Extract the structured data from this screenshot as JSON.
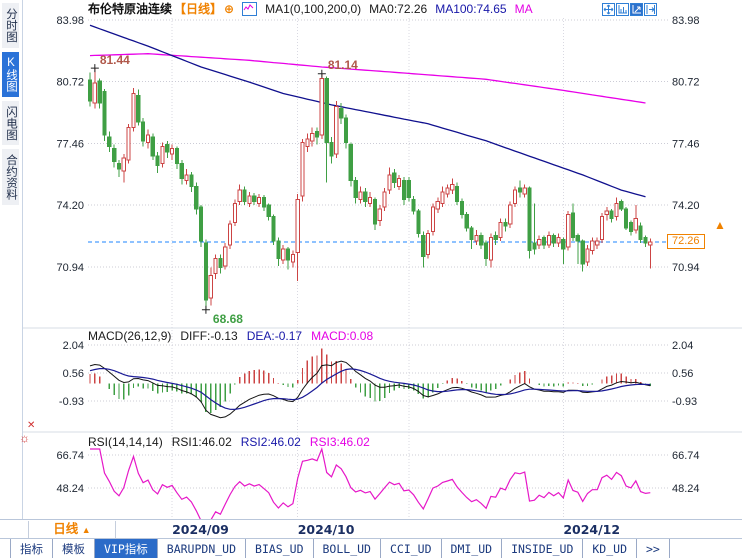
{
  "sidebar": {
    "items": [
      {
        "label": "分时图",
        "active": false
      },
      {
        "label": "K线图",
        "active": true
      },
      {
        "label": "闪电图",
        "active": false
      },
      {
        "label": "合约资料",
        "active": false
      }
    ]
  },
  "header": {
    "symbol": "布伦特原油连续",
    "period_tag": "【日线】",
    "plus_icon": "⊕",
    "ma_params": "MA1(0,100,200,0)",
    "ma0": "MA0:72.26",
    "ma100": "MA100:74.65",
    "ma200": "MA"
  },
  "price_panel": {
    "last_price_badge": "72.26",
    "arrow_icon": "▲"
  },
  "panel_icons": {
    "close": "✕",
    "settings": "☼"
  },
  "indicators": {
    "macd": {
      "title": "MACD(26,12,9)",
      "diff": "DIFF:-0.13",
      "dea": "DEA:-0.17",
      "macd": "MACD:0.08"
    },
    "rsi": {
      "title": "RSI(14,14,14)",
      "rsi1": "RSI1:46.02",
      "rsi2": "RSI2:46.02",
      "rsi3": "RSI3:46.02"
    }
  },
  "timeframe_selector": {
    "label": "日线",
    "arrow": "▲"
  },
  "bottom_tabs": {
    "items": [
      {
        "label": "指标",
        "active": false
      },
      {
        "label": "模板",
        "active": false
      },
      {
        "label": "VIP指标",
        "active": true
      },
      {
        "label": "BARUPDN_UD",
        "active": false
      },
      {
        "label": "BIAS_UD",
        "active": false
      },
      {
        "label": "BOLL_UD",
        "active": false
      },
      {
        "label": "CCI_UD",
        "active": false
      },
      {
        "label": "DMI_UD",
        "active": false
      },
      {
        "label": "INSIDE_UD",
        "active": false
      },
      {
        "label": "KD_UD",
        "active": false
      },
      {
        "label": ">>",
        "active": false
      }
    ]
  },
  "chart_data": {
    "type": "candlestick",
    "title": "布伦特原油连续",
    "period": "日线",
    "price_axis_ticks": [
      83.98,
      80.72,
      77.46,
      74.2,
      70.94
    ],
    "last_price": 72.26,
    "annotations": {
      "first_high": "81.44",
      "swing_high": "81.14",
      "swing_low": "68.68"
    },
    "annotation_indices": {
      "first_high": 1,
      "swing_high": 48,
      "swing_low": 24
    },
    "x_ticks": [
      {
        "index": 17,
        "label": "2024/09"
      },
      {
        "index": 43,
        "label": "2024/10"
      },
      {
        "index": 66,
        "label": ""
      },
      {
        "index": 98,
        "label": "2024/12"
      }
    ],
    "candles": [
      [
        80.8,
        81.2,
        79.4,
        79.7
      ],
      [
        79.6,
        81.44,
        79.3,
        80.65
      ],
      [
        80.75,
        80.9,
        79.3,
        79.6
      ],
      [
        80.2,
        80.35,
        77.6,
        77.9
      ],
      [
        77.8,
        78.1,
        77.0,
        77.3
      ],
      [
        77.2,
        77.4,
        76.2,
        76.5
      ],
      [
        76.4,
        76.6,
        75.7,
        76.1
      ],
      [
        76.0,
        76.9,
        75.4,
        76.7
      ],
      [
        76.6,
        78.5,
        76.4,
        78.3
      ],
      [
        78.3,
        80.4,
        78.1,
        80.1
      ],
      [
        80.0,
        80.3,
        78.4,
        78.6
      ],
      [
        78.6,
        78.8,
        77.3,
        77.6
      ],
      [
        77.5,
        78.2,
        77.2,
        77.9
      ],
      [
        77.8,
        78.0,
        76.6,
        76.8
      ],
      [
        76.8,
        77.0,
        75.9,
        76.3
      ],
      [
        76.4,
        77.5,
        76.2,
        77.3
      ],
      [
        77.4,
        77.6,
        76.7,
        77.0
      ],
      [
        76.9,
        77.4,
        76.6,
        77.2
      ],
      [
        77.2,
        77.3,
        76.1,
        76.4
      ],
      [
        76.4,
        76.6,
        75.3,
        75.6
      ],
      [
        75.5,
        76.1,
        75.3,
        75.8
      ],
      [
        75.8,
        75.95,
        74.9,
        75.2
      ],
      [
        75.2,
        75.4,
        73.7,
        74.0
      ],
      [
        74.1,
        74.2,
        72.0,
        72.3
      ],
      [
        72.2,
        72.4,
        68.68,
        69.2
      ],
      [
        69.3,
        70.9,
        68.9,
        70.5
      ],
      [
        70.6,
        71.6,
        70.3,
        71.4
      ],
      [
        71.4,
        71.6,
        70.6,
        70.9
      ],
      [
        71.0,
        72.2,
        70.8,
        72.0
      ],
      [
        72.1,
        73.4,
        71.9,
        73.2
      ],
      [
        73.3,
        74.5,
        73.1,
        74.3
      ],
      [
        74.4,
        75.3,
        74.2,
        75.0
      ],
      [
        75.0,
        75.2,
        74.2,
        74.4
      ],
      [
        74.3,
        74.9,
        74.1,
        74.7
      ],
      [
        74.7,
        74.85,
        74.2,
        74.4
      ],
      [
        74.3,
        74.8,
        74.1,
        74.6
      ],
      [
        74.6,
        74.75,
        73.9,
        74.1
      ],
      [
        74.2,
        74.3,
        73.4,
        73.6
      ],
      [
        73.6,
        73.7,
        72.1,
        72.3
      ],
      [
        72.3,
        72.5,
        71.0,
        71.4
      ],
      [
        71.3,
        72.1,
        71.1,
        71.9
      ],
      [
        71.9,
        72.0,
        70.8,
        71.3
      ],
      [
        71.2,
        71.8,
        70.9,
        71.6
      ],
      [
        71.7,
        74.8,
        70.2,
        74.5
      ],
      [
        74.7,
        77.7,
        74.4,
        77.5
      ],
      [
        77.3,
        78.0,
        77.0,
        77.7
      ],
      [
        77.6,
        78.3,
        77.3,
        78.0
      ],
      [
        78.1,
        78.3,
        77.4,
        77.8
      ],
      [
        77.9,
        81.14,
        77.7,
        80.9
      ],
      [
        80.9,
        81.0,
        75.4,
        77.5
      ],
      [
        77.5,
        77.8,
        76.4,
        76.8
      ],
      [
        76.9,
        79.7,
        76.7,
        79.4
      ],
      [
        79.3,
        79.6,
        78.5,
        78.8
      ],
      [
        78.8,
        79.0,
        77.2,
        77.5
      ],
      [
        77.4,
        77.5,
        75.2,
        75.5
      ],
      [
        75.5,
        75.7,
        74.3,
        74.6
      ],
      [
        74.5,
        75.2,
        74.3,
        74.9
      ],
      [
        74.9,
        75.1,
        74.1,
        74.4
      ],
      [
        74.3,
        74.9,
        74.1,
        74.6
      ],
      [
        74.5,
        74.6,
        72.9,
        73.2
      ],
      [
        73.4,
        74.2,
        73.1,
        74.0
      ],
      [
        74.1,
        75.1,
        73.9,
        74.9
      ],
      [
        75.0,
        76.2,
        74.8,
        75.8
      ],
      [
        75.9,
        76.1,
        75.1,
        75.4
      ],
      [
        75.2,
        75.8,
        75.0,
        75.6
      ],
      [
        75.5,
        75.7,
        74.2,
        74.5
      ],
      [
        75.5,
        75.7,
        74.4,
        74.6
      ],
      [
        74.5,
        74.7,
        73.7,
        73.9
      ],
      [
        73.9,
        74.0,
        72.5,
        72.7
      ],
      [
        72.6,
        72.8,
        70.9,
        71.5
      ],
      [
        71.6,
        72.9,
        71.4,
        72.7
      ],
      [
        72.8,
        74.3,
        72.6,
        74.1
      ],
      [
        74.0,
        74.6,
        73.8,
        74.4
      ],
      [
        74.3,
        75.2,
        74.1,
        74.9
      ],
      [
        74.8,
        75.3,
        74.6,
        75.1
      ],
      [
        75.0,
        75.6,
        74.8,
        75.3
      ],
      [
        75.2,
        75.4,
        74.2,
        74.4
      ],
      [
        74.4,
        74.55,
        73.5,
        73.7
      ],
      [
        73.7,
        73.85,
        72.8,
        73.0
      ],
      [
        73.0,
        73.1,
        71.9,
        72.4
      ],
      [
        72.3,
        72.9,
        72.1,
        72.6
      ],
      [
        72.6,
        72.75,
        71.9,
        72.1
      ],
      [
        72.2,
        72.35,
        71.0,
        71.4
      ],
      [
        71.3,
        72.7,
        70.9,
        72.5
      ],
      [
        72.6,
        72.8,
        72.1,
        72.4
      ],
      [
        72.5,
        73.5,
        72.3,
        73.3
      ],
      [
        73.3,
        73.5,
        72.8,
        73.1
      ],
      [
        73.2,
        74.4,
        73.0,
        74.2
      ],
      [
        74.3,
        75.2,
        74.1,
        75.0
      ],
      [
        75.1,
        75.5,
        74.6,
        74.9
      ],
      [
        74.8,
        75.3,
        74.6,
        75.1
      ],
      [
        75.1,
        75.2,
        71.4,
        71.8
      ],
      [
        72.2,
        74.3,
        71.6,
        71.9
      ],
      [
        72.1,
        72.6,
        71.9,
        72.4
      ],
      [
        72.5,
        72.6,
        71.9,
        72.1
      ],
      [
        72.1,
        72.8,
        71.95,
        72.6
      ],
      [
        72.6,
        72.7,
        72.0,
        72.2
      ],
      [
        72.2,
        72.7,
        72.0,
        72.5
      ],
      [
        72.4,
        72.5,
        71.1,
        71.9
      ],
      [
        72.0,
        73.9,
        71.8,
        73.7
      ],
      [
        73.8,
        74.3,
        72.3,
        72.5
      ],
      [
        72.6,
        72.7,
        71.1,
        72.3
      ],
      [
        72.3,
        72.4,
        70.7,
        71.1
      ],
      [
        71.2,
        72.1,
        71.0,
        71.9
      ],
      [
        71.8,
        72.5,
        71.6,
        72.3
      ],
      [
        72.1,
        72.5,
        71.9,
        72.3
      ],
      [
        72.4,
        73.8,
        72.2,
        73.6
      ],
      [
        73.7,
        74.1,
        73.4,
        73.9
      ],
      [
        73.9,
        74.0,
        73.3,
        73.5
      ],
      [
        73.6,
        74.6,
        73.4,
        74.3
      ],
      [
        74.4,
        74.5,
        73.9,
        74.0
      ],
      [
        74.0,
        74.1,
        72.9,
        73.0
      ],
      [
        73.3,
        73.4,
        72.6,
        72.8
      ],
      [
        72.9,
        74.2,
        72.7,
        73.5
      ],
      [
        73.1,
        73.3,
        72.2,
        72.4
      ],
      [
        72.5,
        72.6,
        72.0,
        72.2
      ],
      [
        72.1,
        72.45,
        70.85,
        72.26
      ]
    ],
    "pre_chart_closes": [
      76.2,
      76.5,
      76.8,
      77.1,
      77.4,
      77.7,
      78.0,
      78.3,
      78.6,
      78.9,
      79.2,
      79.5,
      79.8,
      80.2
    ],
    "ma100_anchors": [
      [
        0,
        83.7
      ],
      [
        12,
        82.6
      ],
      [
        23,
        81.5
      ],
      [
        33,
        80.7
      ],
      [
        40,
        80.1
      ],
      [
        50,
        79.5
      ],
      [
        60,
        79.0
      ],
      [
        70,
        78.5
      ],
      [
        82,
        77.6
      ],
      [
        92,
        76.7
      ],
      [
        102,
        75.8
      ],
      [
        110,
        75.0
      ],
      [
        115,
        74.65
      ]
    ],
    "ma200_anchors": [
      [
        0,
        82.1
      ],
      [
        12,
        82.2
      ],
      [
        33,
        81.85
      ],
      [
        48,
        81.5
      ],
      [
        64,
        81.2
      ],
      [
        82,
        80.85
      ],
      [
        97,
        80.3
      ],
      [
        115,
        79.6
      ]
    ],
    "macd": {
      "axis_ticks": [
        2.04,
        0.56,
        -0.93
      ],
      "fast": 12,
      "slow": 26,
      "signal": 9,
      "diff_value": -0.13,
      "dea_value": -0.17,
      "macd_value": 0.08
    },
    "rsi": {
      "axis_ticks": [
        66.74,
        48.24
      ],
      "period": 14,
      "rsi1": 46.02,
      "rsi2": 46.02,
      "rsi3": 46.02
    },
    "colors": {
      "up": "#cc4444",
      "down": "#3f9f44",
      "ma100": "#10108e",
      "ma200": "#e800e8",
      "diff": "#141414",
      "dea": "#1a1a96",
      "rsi_line": "#e618c8",
      "last_line": "#1e86ff",
      "badge": "#f08200",
      "anno_high": "#b0584a",
      "anno_low": "#3f9f44"
    }
  }
}
